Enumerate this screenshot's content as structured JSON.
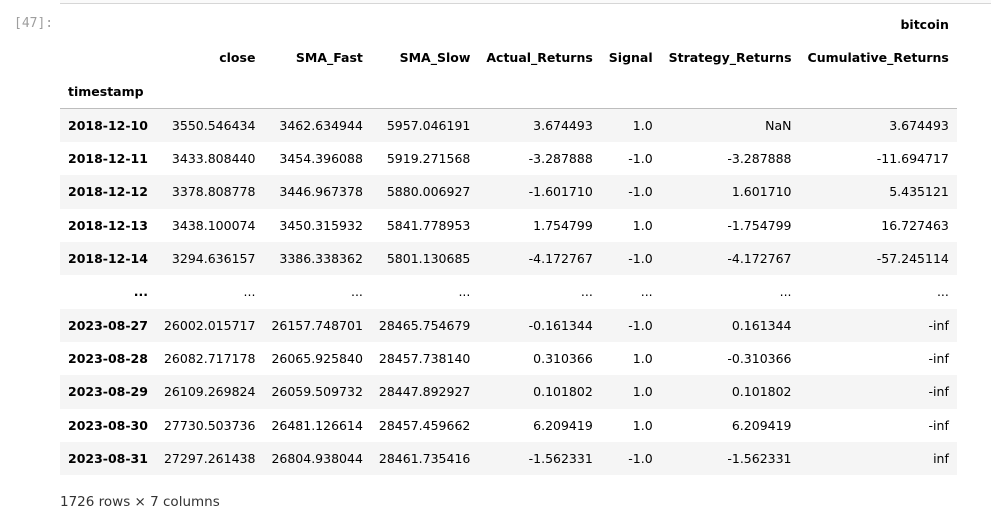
{
  "cell": {
    "prompt": "[47]:"
  },
  "table": {
    "level0_header": "bitcoin",
    "columns": [
      "close",
      "SMA_Fast",
      "SMA_Slow",
      "Actual_Returns",
      "Signal",
      "Strategy_Returns",
      "Cumulative_Returns"
    ],
    "index_name": "timestamp",
    "rows": [
      {
        "index": "2018-12-10",
        "cells": [
          "3550.546434",
          "3462.634944",
          "5957.046191",
          "3.674493",
          "1.0",
          "NaN",
          "3.674493"
        ]
      },
      {
        "index": "2018-12-11",
        "cells": [
          "3433.808440",
          "3454.396088",
          "5919.271568",
          "-3.287888",
          "-1.0",
          "-3.287888",
          "-11.694717"
        ]
      },
      {
        "index": "2018-12-12",
        "cells": [
          "3378.808778",
          "3446.967378",
          "5880.006927",
          "-1.601710",
          "-1.0",
          "1.601710",
          "5.435121"
        ]
      },
      {
        "index": "2018-12-13",
        "cells": [
          "3438.100074",
          "3450.315932",
          "5841.778953",
          "1.754799",
          "1.0",
          "-1.754799",
          "16.727463"
        ]
      },
      {
        "index": "2018-12-14",
        "cells": [
          "3294.636157",
          "3386.338362",
          "5801.130685",
          "-4.172767",
          "-1.0",
          "-4.172767",
          "-57.245114"
        ]
      },
      {
        "index": "...",
        "cells": [
          "...",
          "...",
          "...",
          "...",
          "...",
          "...",
          "..."
        ]
      },
      {
        "index": "2023-08-27",
        "cells": [
          "26002.015717",
          "26157.748701",
          "28465.754679",
          "-0.161344",
          "-1.0",
          "0.161344",
          "-inf"
        ]
      },
      {
        "index": "2023-08-28",
        "cells": [
          "26082.717178",
          "26065.925840",
          "28457.738140",
          "0.310366",
          "1.0",
          "-0.310366",
          "-inf"
        ]
      },
      {
        "index": "2023-08-29",
        "cells": [
          "26109.269824",
          "26059.509732",
          "28447.892927",
          "0.101802",
          "1.0",
          "0.101802",
          "-inf"
        ]
      },
      {
        "index": "2023-08-30",
        "cells": [
          "27730.503736",
          "26481.126614",
          "28457.459662",
          "6.209419",
          "1.0",
          "6.209419",
          "-inf"
        ]
      },
      {
        "index": "2023-08-31",
        "cells": [
          "27297.261438",
          "26804.938044",
          "28461.735416",
          "-1.562331",
          "-1.0",
          "-1.562331",
          "inf"
        ]
      }
    ]
  },
  "footer": {
    "shape_text": "1726 rows × 7 columns"
  }
}
